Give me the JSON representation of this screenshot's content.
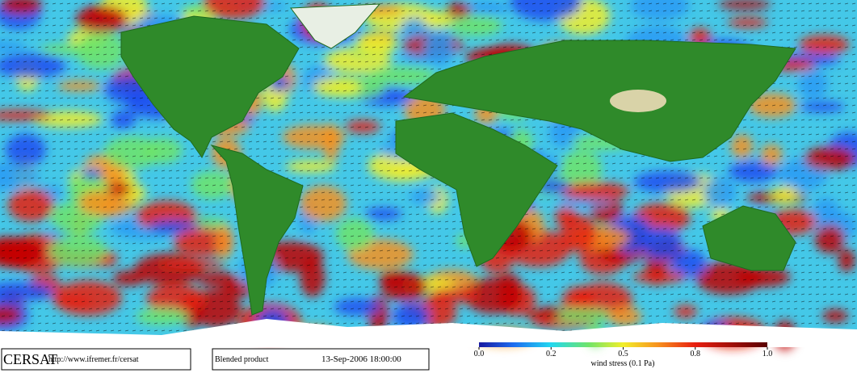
{
  "brand": "CERSAT",
  "url": "http://www.ifremer.fr/cersat",
  "product": "Blended product",
  "timestamp": "13-Sep-2006 18:00:00",
  "colorbar": {
    "label": "wind stress (0.1 Pa)",
    "ticks": [
      {
        "value": 0,
        "label": "0.0"
      },
      {
        "value": 0.2,
        "label": "0.2"
      },
      {
        "value": 0.5,
        "label": "0.5"
      },
      {
        "value": 0.8,
        "label": "0.8"
      },
      {
        "value": 1,
        "label": "1.0"
      }
    ]
  }
}
